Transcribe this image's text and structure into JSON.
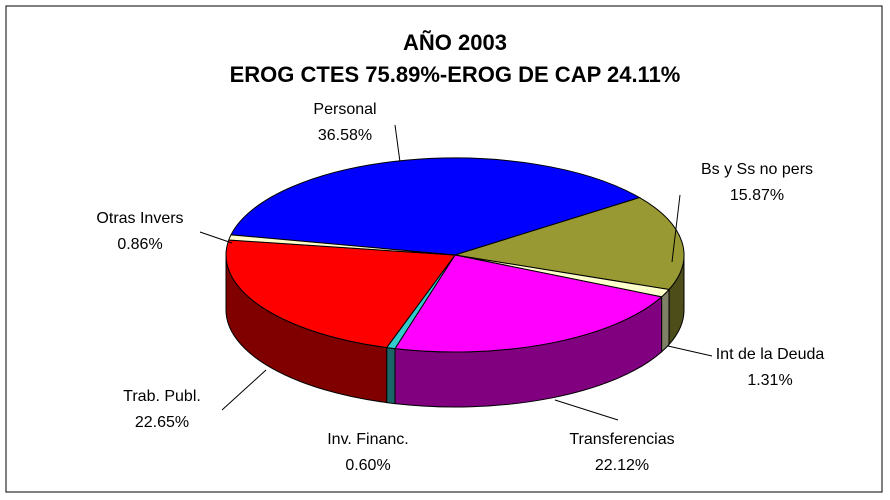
{
  "chart_data": {
    "type": "pie",
    "title": [
      "AÑO 2003",
      "EROG CTES 75.89%-EROG DE CAP 24.11%"
    ],
    "categories": [
      "Personal",
      "Bs y Ss no pers",
      "Int de la Deuda",
      "Transferencias",
      "Inv. Financ.",
      "Trab. Publ.",
      "Otras Invers"
    ],
    "values": [
      36.58,
      15.87,
      1.31,
      22.12,
      0.6,
      22.65,
      0.86
    ],
    "value_labels": [
      "36.58%",
      "15.87%",
      "1.31%",
      "22.12%",
      "0.60%",
      "22.65%",
      "0.86%"
    ],
    "colors": [
      "#0000ff",
      "#999933",
      "#ffffcc",
      "#ff00ff",
      "#33cccc",
      "#ff0000",
      "#ffffcc"
    ]
  }
}
